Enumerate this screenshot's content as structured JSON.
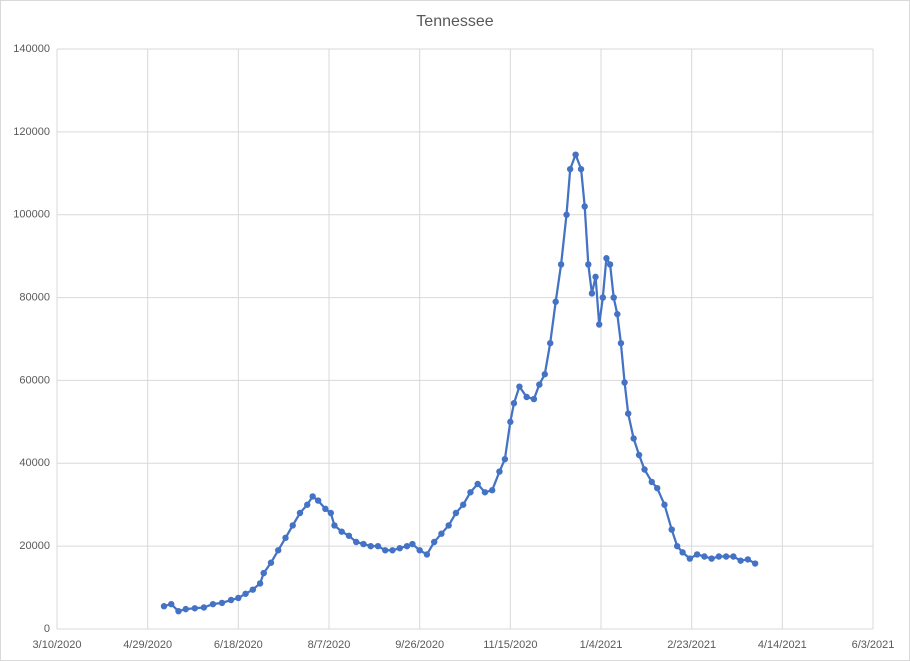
{
  "chart_data": {
    "type": "line",
    "title": "Tennessee",
    "x": [
      "5/8/2020",
      "5/12/2020",
      "5/16/2020",
      "5/20/2020",
      "5/25/2020",
      "5/30/2020",
      "6/4/2020",
      "6/9/2020",
      "6/14/2020",
      "6/18/2020",
      "6/22/2020",
      "6/26/2020",
      "6/30/2020",
      "7/2/2020",
      "7/6/2020",
      "7/10/2020",
      "7/14/2020",
      "7/18/2020",
      "7/22/2020",
      "7/26/2020",
      "7/29/2020",
      "8/1/2020",
      "8/5/2020",
      "8/8/2020",
      "8/10/2020",
      "8/14/2020",
      "8/18/2020",
      "8/22/2020",
      "8/26/2020",
      "8/30/2020",
      "9/3/2020",
      "9/7/2020",
      "9/11/2020",
      "9/15/2020",
      "9/19/2020",
      "9/22/2020",
      "9/26/2020",
      "9/30/2020",
      "10/4/2020",
      "10/8/2020",
      "10/12/2020",
      "10/16/2020",
      "10/20/2020",
      "10/24/2020",
      "10/28/2020",
      "11/1/2020",
      "11/5/2020",
      "11/9/2020",
      "11/12/2020",
      "11/15/2020",
      "11/17/2020",
      "11/20/2020",
      "11/24/2020",
      "11/28/2020",
      "12/1/2020",
      "12/4/2020",
      "12/7/2020",
      "12/10/2020",
      "12/13/2020",
      "12/16/2020",
      "12/18/2020",
      "12/21/2020",
      "12/24/2020",
      "12/26/2020",
      "12/28/2020",
      "12/30/2020",
      "1/1/2021",
      "1/3/2021",
      "1/5/2021",
      "1/7/2021",
      "1/9/2021",
      "1/11/2021",
      "1/13/2021",
      "1/15/2021",
      "1/17/2021",
      "1/19/2021",
      "1/22/2021",
      "1/25/2021",
      "1/28/2021",
      "2/1/2021",
      "2/4/2021",
      "2/8/2021",
      "2/12/2021",
      "2/15/2021",
      "2/18/2021",
      "2/22/2021",
      "2/26/2021",
      "3/2/2021",
      "3/6/2021",
      "3/10/2021",
      "3/14/2021",
      "3/18/2021",
      "3/22/2021",
      "3/26/2021",
      "3/30/2021"
    ],
    "series": [
      {
        "name": "Tennessee",
        "color": "#4472c4",
        "values": [
          5500,
          6000,
          4300,
          4800,
          5000,
          5200,
          6000,
          6300,
          7000,
          7500,
          8500,
          9500,
          11000,
          13500,
          16000,
          19000,
          22000,
          25000,
          28000,
          30000,
          32000,
          31000,
          29000,
          28000,
          25000,
          23500,
          22500,
          21000,
          20500,
          20000,
          20000,
          19000,
          19000,
          19500,
          20000,
          20500,
          19000,
          18000,
          21000,
          23000,
          25000,
          28000,
          30000,
          33000,
          35000,
          33000,
          33500,
          38000,
          41000,
          50000,
          54500,
          58500,
          56000,
          55500,
          59000,
          61500,
          69000,
          79000,
          88000,
          100000,
          111000,
          114500,
          111000,
          102000,
          88000,
          81000,
          85000,
          73500,
          80000,
          89500,
          88000,
          80000,
          76000,
          69000,
          59500,
          52000,
          46000,
          42000,
          38500,
          35500,
          34000,
          30000,
          24000,
          20000,
          18500,
          17000,
          18000,
          17500,
          17000,
          17500,
          17500,
          17500,
          16500,
          16800,
          15800
        ]
      }
    ],
    "xlim": [
      "3/10/2020",
      "6/3/2021"
    ],
    "xticks": [
      "3/10/2020",
      "4/29/2020",
      "6/18/2020",
      "8/7/2020",
      "9/26/2020",
      "11/15/2020",
      "1/4/2021",
      "2/23/2021",
      "4/14/2021",
      "6/3/2021"
    ],
    "ylim": [
      0,
      140000
    ],
    "yticks": [
      0,
      20000,
      40000,
      60000,
      80000,
      100000,
      120000,
      140000
    ],
    "grid": true
  }
}
